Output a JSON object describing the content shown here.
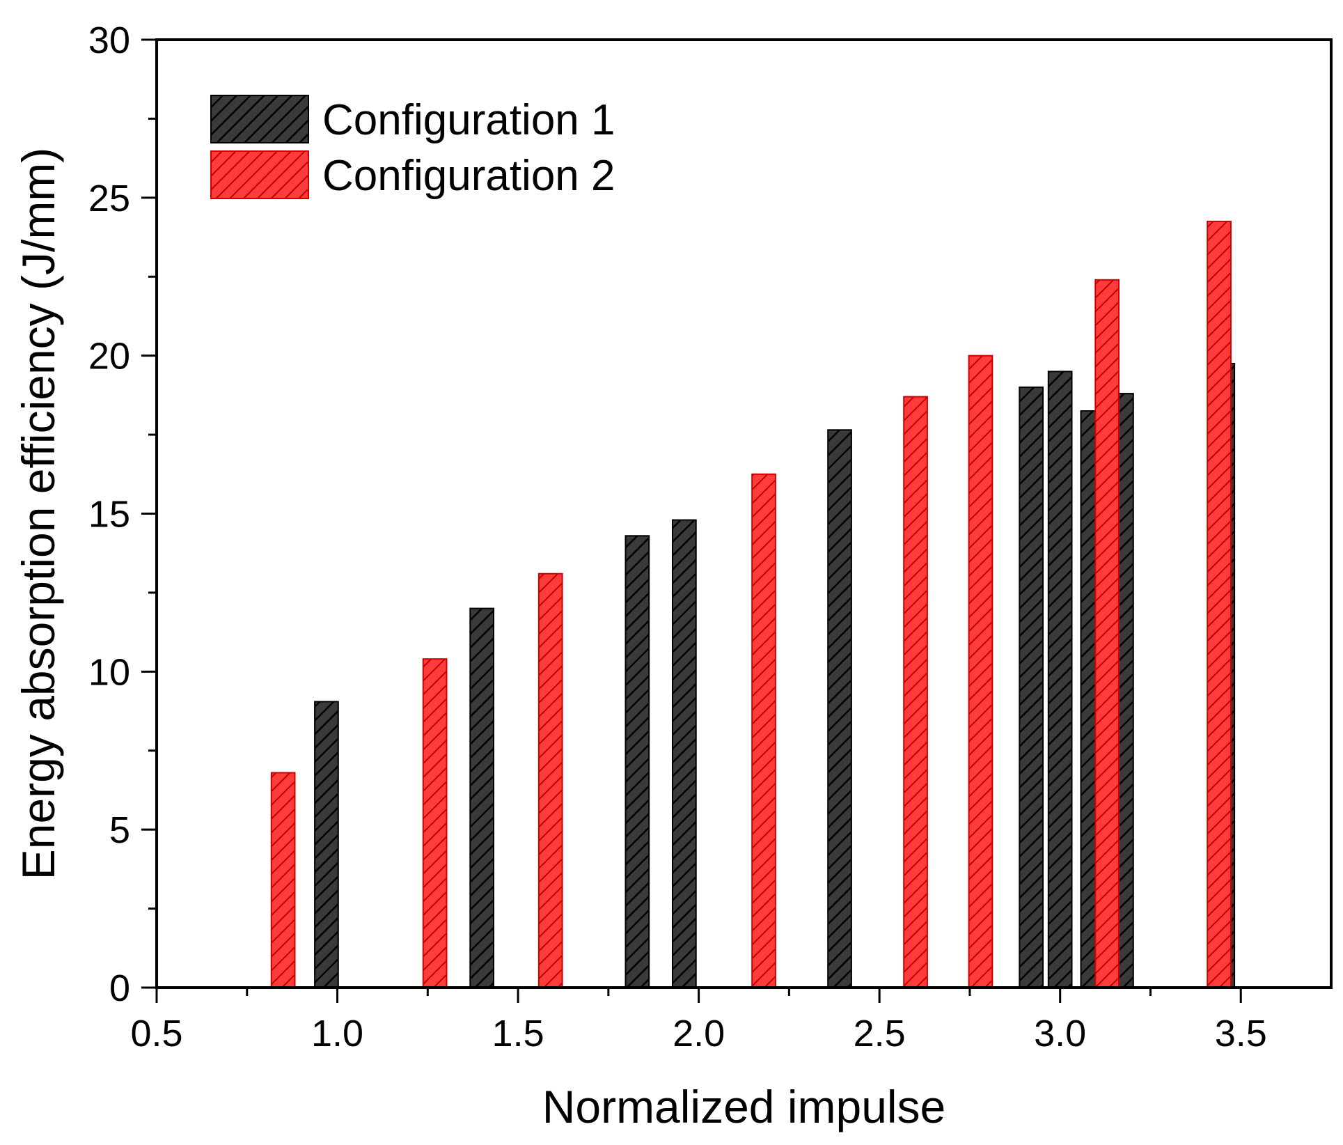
{
  "chart_data": {
    "type": "bar",
    "title": "",
    "xlabel": "Normalized impulse",
    "ylabel": "Energy absorption efficiency (J/mm)",
    "xlim": [
      0.5,
      3.75
    ],
    "ylim": [
      0,
      30
    ],
    "x_ticks": [
      "0.5",
      "1.0",
      "1.5",
      "2.0",
      "2.5",
      "3.0",
      "3.5"
    ],
    "y_ticks": [
      "0",
      "5",
      "10",
      "15",
      "20",
      "25",
      "30"
    ],
    "grid": false,
    "legend_position": "top-left",
    "bar_width_units": 0.065,
    "series": [
      {
        "name": "Configuration 1",
        "color": "#3a3a3a",
        "hatch_color": "#000000",
        "points": [
          {
            "x": 0.97,
            "y": 9.05
          },
          {
            "x": 1.4,
            "y": 12.0
          },
          {
            "x": 1.83,
            "y": 14.3
          },
          {
            "x": 1.96,
            "y": 14.8
          },
          {
            "x": 2.39,
            "y": 17.65
          },
          {
            "x": 2.92,
            "y": 19.0
          },
          {
            "x": 3.0,
            "y": 19.5
          },
          {
            "x": 3.09,
            "y": 18.25
          },
          {
            "x": 3.17,
            "y": 18.8
          },
          {
            "x": 3.45,
            "y": 19.75
          }
        ]
      },
      {
        "name": "Configuration 2",
        "color": "#ff3c3c",
        "hatch_color": "#c00000",
        "points": [
          {
            "x": 0.85,
            "y": 6.8
          },
          {
            "x": 1.27,
            "y": 10.4
          },
          {
            "x": 1.59,
            "y": 13.1
          },
          {
            "x": 2.18,
            "y": 16.25
          },
          {
            "x": 2.6,
            "y": 18.7
          },
          {
            "x": 2.78,
            "y": 20.0
          },
          {
            "x": 3.13,
            "y": 22.4
          },
          {
            "x": 3.44,
            "y": 24.25
          }
        ]
      }
    ]
  }
}
